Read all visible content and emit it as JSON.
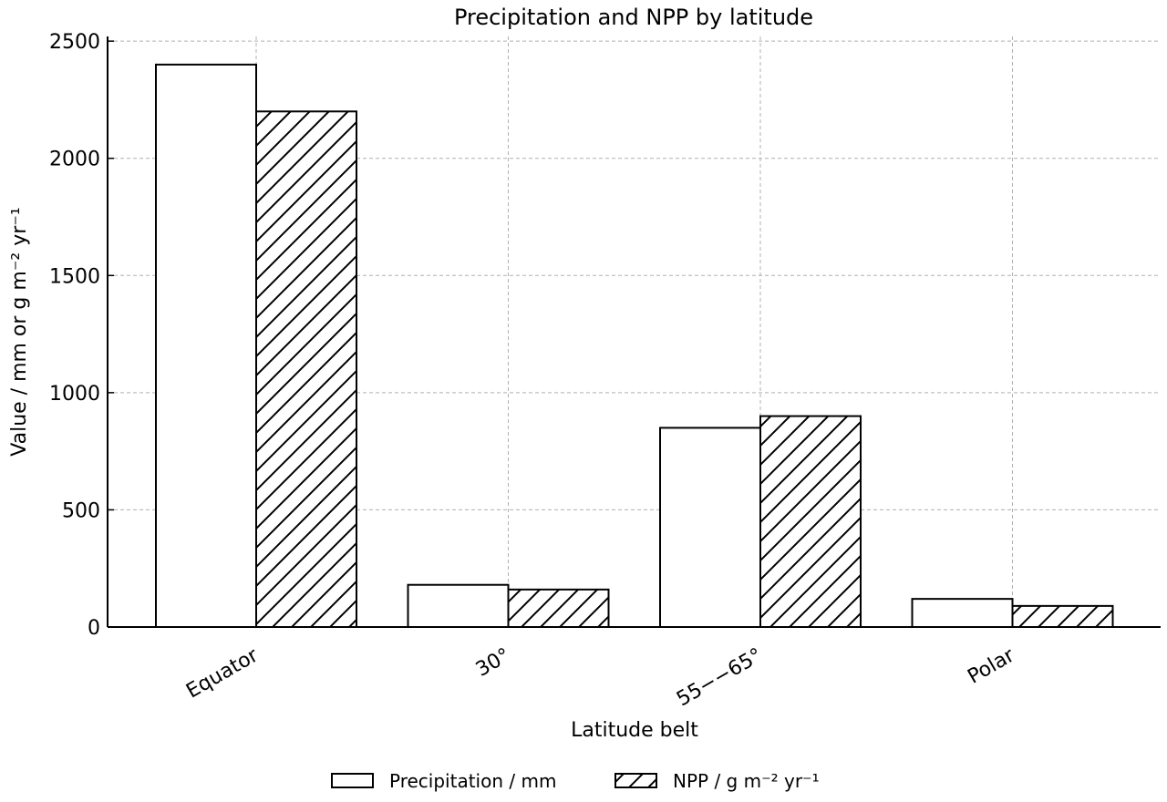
{
  "chart_data": {
    "type": "bar",
    "title": "Precipitation and NPP by latitude",
    "xlabel": "Latitude belt",
    "ylabel": "Value / mm or g m⁻² yr⁻¹",
    "categories": [
      "Equator",
      "30°",
      "55−−65°",
      "Polar"
    ],
    "series": [
      {
        "name": "Precipitation / mm",
        "values": [
          2400,
          180,
          850,
          120
        ],
        "fill": "plain"
      },
      {
        "name": "NPP / g m⁻² yr⁻¹",
        "values": [
          2200,
          160,
          900,
          90
        ],
        "fill": "hatch"
      }
    ],
    "ylim": [
      0,
      2520
    ],
    "yticks": [
      0,
      500,
      1000,
      1500,
      2000,
      2500
    ],
    "grid": true,
    "legend_position": "bottom-center",
    "colors": {
      "bar_fill": "#ffffff",
      "bar_edge": "#000000",
      "grid": "#b0b0b0"
    }
  }
}
